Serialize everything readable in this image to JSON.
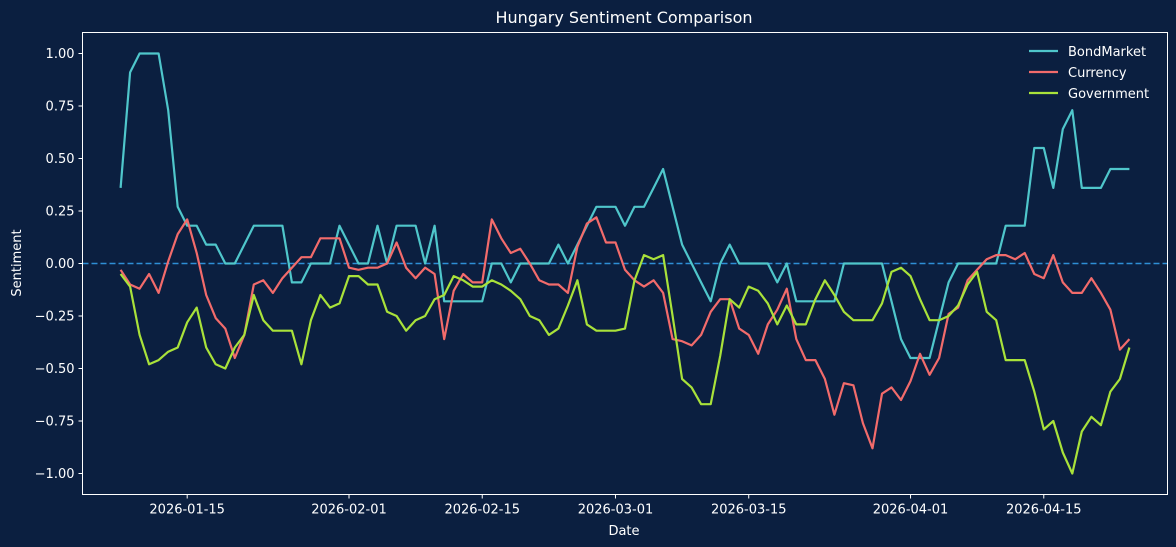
{
  "chart_data": {
    "type": "line",
    "title": "Hungary Sentiment Comparison",
    "xlabel": "Date",
    "ylabel": "Sentiment",
    "xlim": [
      "2026-01-04",
      "2026-04-28"
    ],
    "ylim": [
      -1.1,
      1.1
    ],
    "xticks": [
      "2026-01-15",
      "2026-02-01",
      "2026-02-15",
      "2026-03-01",
      "2026-03-15",
      "2026-04-01",
      "2026-04-15"
    ],
    "yticks": [
      1.0,
      0.75,
      0.5,
      0.25,
      0.0,
      -0.25,
      -0.5,
      -0.75,
      -1.0
    ],
    "ytick_labels": [
      "1.00",
      "0.75",
      "0.50",
      "0.25",
      "0.00",
      "−0.25",
      "−0.50",
      "−0.75",
      "−1.00"
    ],
    "reference_line": {
      "y": 0,
      "style": "dashed",
      "color": "#2e8fd6"
    },
    "legend": {
      "position": "top-right"
    },
    "grid": false,
    "start_date": "2026-01-08",
    "series": [
      {
        "name": "BondMarket",
        "color": "#4fc6cb",
        "values": [
          0.36,
          0.91,
          1.0,
          1.0,
          1.0,
          0.73,
          0.27,
          0.18,
          0.18,
          0.09,
          0.09,
          0.0,
          0.0,
          0.09,
          0.18,
          0.18,
          0.18,
          0.18,
          -0.09,
          -0.09,
          0.0,
          0.0,
          0.0,
          0.18,
          0.09,
          0.0,
          0.0,
          0.18,
          0.0,
          0.18,
          0.18,
          0.18,
          0.0,
          0.18,
          -0.18,
          -0.18,
          -0.18,
          -0.18,
          -0.18,
          0.0,
          0.0,
          -0.09,
          0.0,
          0.0,
          0.0,
          0.0,
          0.09,
          0.0,
          0.09,
          0.18,
          0.27,
          0.27,
          0.27,
          0.18,
          0.27,
          0.27,
          0.36,
          0.45,
          0.27,
          0.09,
          0.0,
          -0.09,
          -0.18,
          0.0,
          0.09,
          0.0,
          0.0,
          0.0,
          0.0,
          -0.09,
          0.0,
          -0.18,
          -0.18,
          -0.18,
          -0.18,
          -0.18,
          0.0,
          0.0,
          0.0,
          0.0,
          0.0,
          -0.18,
          -0.36,
          -0.45,
          -0.45,
          -0.45,
          -0.27,
          -0.09,
          0.0,
          0.0,
          0.0,
          0.0,
          0.0,
          0.18,
          0.18,
          0.18,
          0.55,
          0.55,
          0.36,
          0.64,
          0.73,
          0.36,
          0.36,
          0.36,
          0.45,
          0.45,
          0.45
        ]
      },
      {
        "name": "Currency",
        "color": "#f26b6b",
        "values": [
          -0.03,
          -0.1,
          -0.12,
          -0.05,
          -0.14,
          0.01,
          0.14,
          0.21,
          0.05,
          -0.15,
          -0.26,
          -0.31,
          -0.45,
          -0.34,
          -0.1,
          -0.08,
          -0.14,
          -0.07,
          -0.02,
          0.03,
          0.03,
          0.12,
          0.12,
          0.12,
          -0.02,
          -0.03,
          -0.02,
          -0.02,
          0.0,
          0.1,
          -0.02,
          -0.07,
          -0.02,
          -0.05,
          -0.36,
          -0.13,
          -0.05,
          -0.09,
          -0.09,
          0.21,
          0.12,
          0.05,
          0.07,
          0.0,
          -0.08,
          -0.1,
          -0.1,
          -0.14,
          0.08,
          0.19,
          0.22,
          0.1,
          0.1,
          -0.03,
          -0.08,
          -0.11,
          -0.08,
          -0.14,
          -0.36,
          -0.37,
          -0.39,
          -0.34,
          -0.23,
          -0.17,
          -0.17,
          -0.31,
          -0.34,
          -0.43,
          -0.29,
          -0.22,
          -0.12,
          -0.36,
          -0.46,
          -0.46,
          -0.55,
          -0.72,
          -0.57,
          -0.58,
          -0.76,
          -0.88,
          -0.62,
          -0.59,
          -0.65,
          -0.56,
          -0.43,
          -0.53,
          -0.45,
          -0.24,
          -0.21,
          -0.08,
          -0.03,
          0.02,
          0.04,
          0.04,
          0.02,
          0.05,
          -0.05,
          -0.07,
          0.04,
          -0.09,
          -0.14,
          -0.14,
          -0.07,
          -0.14,
          -0.22,
          -0.41,
          -0.36
        ]
      },
      {
        "name": "Government",
        "color": "#a9e23a",
        "values": [
          -0.05,
          -0.11,
          -0.34,
          -0.48,
          -0.46,
          -0.42,
          -0.4,
          -0.28,
          -0.21,
          -0.4,
          -0.48,
          -0.5,
          -0.4,
          -0.34,
          -0.15,
          -0.27,
          -0.32,
          -0.32,
          -0.32,
          -0.48,
          -0.27,
          -0.15,
          -0.21,
          -0.19,
          -0.06,
          -0.06,
          -0.1,
          -0.1,
          -0.23,
          -0.25,
          -0.32,
          -0.27,
          -0.25,
          -0.17,
          -0.15,
          -0.06,
          -0.08,
          -0.11,
          -0.11,
          -0.08,
          -0.1,
          -0.13,
          -0.17,
          -0.25,
          -0.27,
          -0.34,
          -0.31,
          -0.2,
          -0.08,
          -0.29,
          -0.32,
          -0.32,
          -0.32,
          -0.31,
          -0.08,
          0.04,
          0.02,
          0.04,
          -0.25,
          -0.55,
          -0.59,
          -0.67,
          -0.67,
          -0.44,
          -0.17,
          -0.21,
          -0.11,
          -0.13,
          -0.19,
          -0.29,
          -0.2,
          -0.29,
          -0.29,
          -0.17,
          -0.08,
          -0.15,
          -0.23,
          -0.27,
          -0.27,
          -0.27,
          -0.19,
          -0.04,
          -0.02,
          -0.06,
          -0.17,
          -0.27,
          -0.27,
          -0.25,
          -0.2,
          -0.1,
          -0.04,
          -0.23,
          -0.27,
          -0.46,
          -0.46,
          -0.46,
          -0.61,
          -0.79,
          -0.75,
          -0.9,
          -1.0,
          -0.8,
          -0.73,
          -0.77,
          -0.61,
          -0.55,
          -0.4
        ]
      }
    ]
  }
}
